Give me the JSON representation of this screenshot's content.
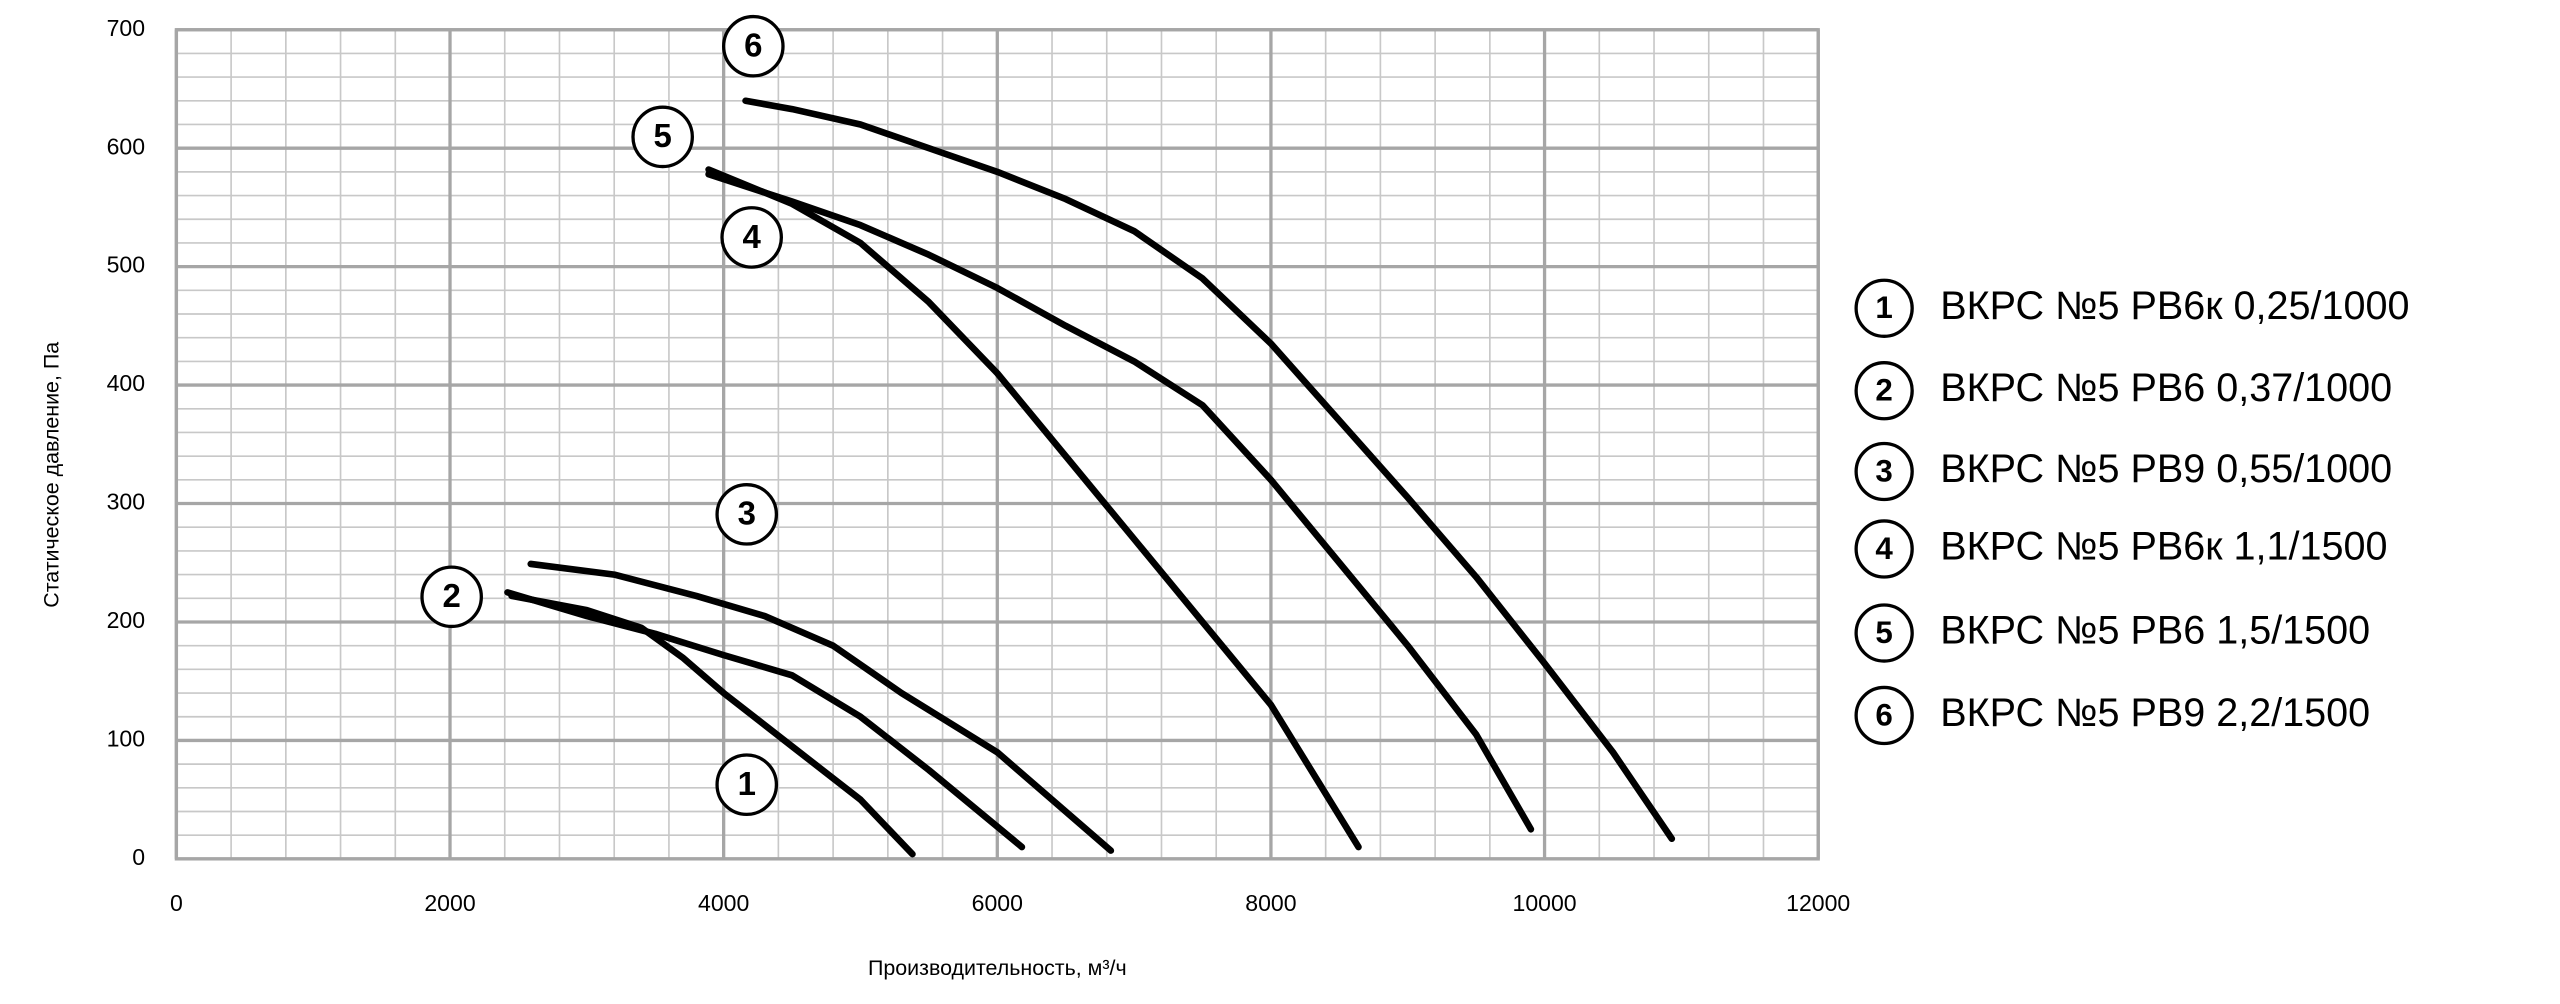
{
  "chart_data": {
    "type": "line",
    "xlabel": "Производительность, м³/ч",
    "ylabel": "Статическое давление, Па",
    "xlim": [
      0,
      12000
    ],
    "xticks": [
      0,
      2000,
      4000,
      6000,
      8000,
      10000,
      12000
    ],
    "ylim": [
      0,
      700
    ],
    "yticks": [
      0,
      100,
      200,
      300,
      400,
      500,
      600,
      700
    ],
    "grid": true,
    "legend": "right",
    "series": [
      {
        "marker": "1",
        "name": "ВКРС №5 РВ6к 0,25/1000",
        "color": "#000000",
        "x": [
          2450,
          3000,
          3400,
          3700,
          4000,
          4500,
          5000,
          5380
        ],
        "values": [
          222,
          210,
          195,
          170,
          140,
          95,
          50,
          4
        ]
      },
      {
        "marker": "2",
        "name": "ВКРС №5 РВ6 0,37/1000",
        "color": "#000000",
        "x": [
          2420,
          3000,
          3500,
          4000,
          4500,
          5000,
          5500,
          6180
        ],
        "values": [
          225,
          205,
          190,
          172,
          155,
          120,
          75,
          10
        ]
      },
      {
        "marker": "3",
        "name": "ВКРС №5 РВ9 0,55/1000",
        "color": "#000000",
        "x": [
          2590,
          3200,
          3800,
          4300,
          4800,
          5300,
          6000,
          6830
        ],
        "values": [
          249,
          240,
          222,
          205,
          180,
          140,
          90,
          7
        ]
      },
      {
        "marker": "4",
        "name": "ВКРС №5 РВ6к 1,1/1500",
        "color": "#000000",
        "x": [
          3890,
          4500,
          5000,
          5500,
          6000,
          6500,
          7000,
          7500,
          8000,
          8640
        ],
        "values": [
          582,
          553,
          520,
          470,
          410,
          340,
          270,
          200,
          130,
          10
        ]
      },
      {
        "marker": "5",
        "name": "ВКРС №5 РВ6 1,5/1500",
        "color": "#000000",
        "x": [
          3890,
          4500,
          5000,
          5500,
          6000,
          6500,
          7000,
          7500,
          8000,
          8500,
          9000,
          9500,
          9900
        ],
        "values": [
          578,
          555,
          535,
          510,
          482,
          450,
          420,
          383,
          320,
          250,
          180,
          105,
          25
        ]
      },
      {
        "marker": "6",
        "name": "ВКРС №5 РВ9 2,2/1500",
        "color": "#000000",
        "x": [
          4160,
          4500,
          5000,
          5500,
          6000,
          6500,
          7000,
          7500,
          8000,
          8500,
          9000,
          9500,
          10000,
          10500,
          10930
        ],
        "values": [
          640,
          633,
          620,
          600,
          580,
          557,
          530,
          490,
          435,
          370,
          305,
          238,
          165,
          90,
          17
        ]
      }
    ]
  }
}
